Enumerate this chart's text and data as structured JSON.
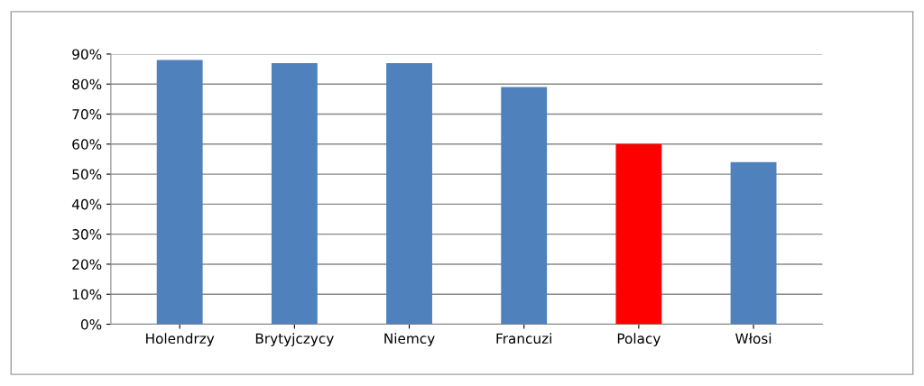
{
  "chart_data": {
    "type": "bar",
    "categories": [
      "Holendrzy",
      "Brytyjczycy",
      "Niemcy",
      "Francuzi",
      "Polacy",
      "Włosi"
    ],
    "values": [
      88,
      87,
      87,
      79,
      60,
      54
    ],
    "colors": [
      "#4f81bd",
      "#4f81bd",
      "#4f81bd",
      "#4f81bd",
      "#ff0000",
      "#4f81bd"
    ],
    "ylim": [
      0,
      90
    ],
    "yticks": [
      {
        "value": 0,
        "label": "0%"
      },
      {
        "value": 10,
        "label": "10%"
      },
      {
        "value": 20,
        "label": "20%"
      },
      {
        "value": 30,
        "label": "30%"
      },
      {
        "value": 40,
        "label": "40%"
      },
      {
        "value": 50,
        "label": "50%"
      },
      {
        "value": 60,
        "label": "60%"
      },
      {
        "value": 70,
        "label": "70%"
      },
      {
        "value": 80,
        "label": "80%"
      },
      {
        "value": 90,
        "label": "90%"
      }
    ],
    "grid": "y"
  }
}
